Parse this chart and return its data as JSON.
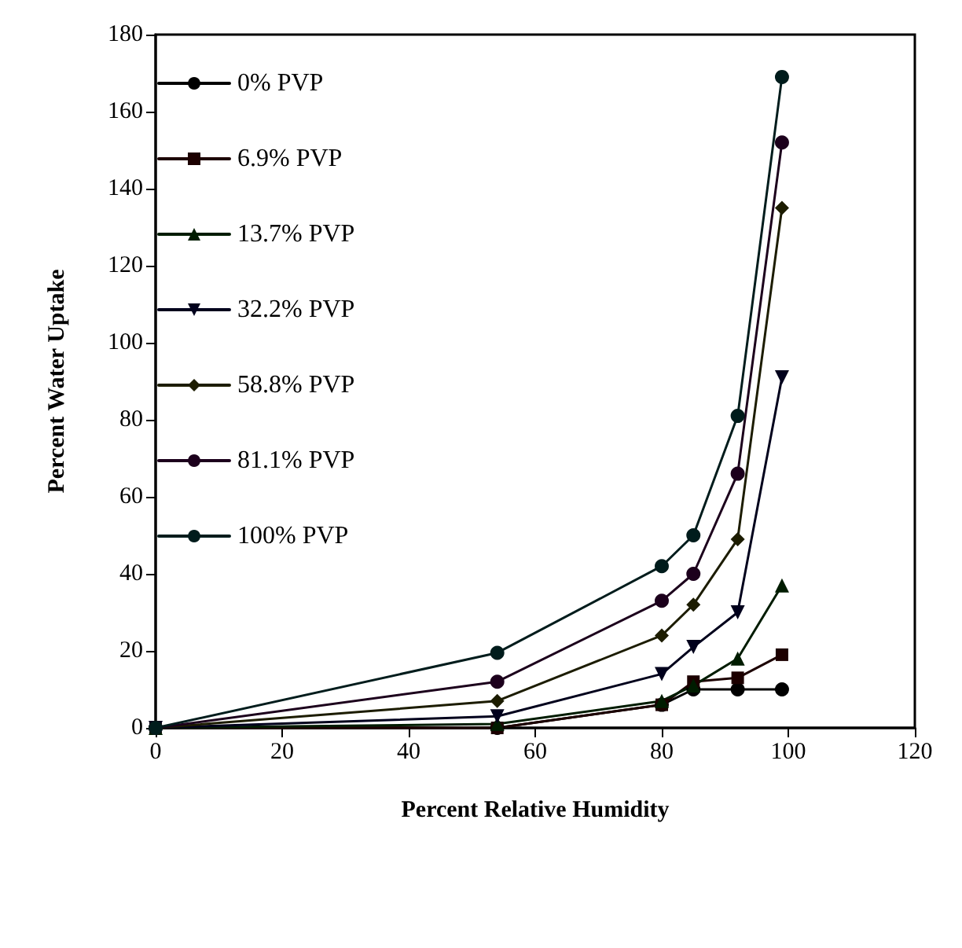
{
  "chart_data": {
    "type": "line",
    "xlabel": "Percent Relative Humidity",
    "ylabel": "Percent Water Uptake",
    "xlim": [
      0,
      120
    ],
    "xticks": [
      0,
      20,
      40,
      60,
      80,
      100,
      120
    ],
    "ylim": [
      0,
      180
    ],
    "yticks": [
      0,
      20,
      40,
      60,
      80,
      100,
      120,
      140,
      160,
      180
    ],
    "x": [
      0,
      54,
      80,
      85,
      92,
      99
    ],
    "grid": false,
    "legend": "top left",
    "line_style": "solid",
    "series": [
      {
        "name": "0% PVP",
        "color": "#000000",
        "marker": "circle",
        "values": [
          0,
          0,
          6,
          10,
          10,
          10
        ]
      },
      {
        "name": "6.9% PVP",
        "color": "#1c0000",
        "marker": "square",
        "values": [
          0,
          0,
          6,
          12,
          13,
          19
        ]
      },
      {
        "name": "13.7% PVP",
        "color": "#001c00",
        "marker": "triangle",
        "values": [
          0,
          1,
          7,
          11,
          18,
          37
        ]
      },
      {
        "name": "32.2% PVP",
        "color": "#00001c",
        "marker": "triangle-down",
        "values": [
          0,
          3,
          14,
          21,
          30,
          91
        ]
      },
      {
        "name": "58.8% PVP",
        "color": "#1c1c00",
        "marker": "diamond",
        "values": [
          0,
          7,
          24,
          32,
          49,
          135
        ]
      },
      {
        "name": "81.1% PVP",
        "color": "#1c001c",
        "marker": "circle",
        "values": [
          0,
          12,
          33,
          40,
          66,
          152
        ]
      },
      {
        "name": "100% PVP",
        "color": "#001c1c",
        "marker": "circle",
        "values": [
          0,
          19.5,
          42,
          50,
          81,
          169
        ]
      }
    ]
  }
}
